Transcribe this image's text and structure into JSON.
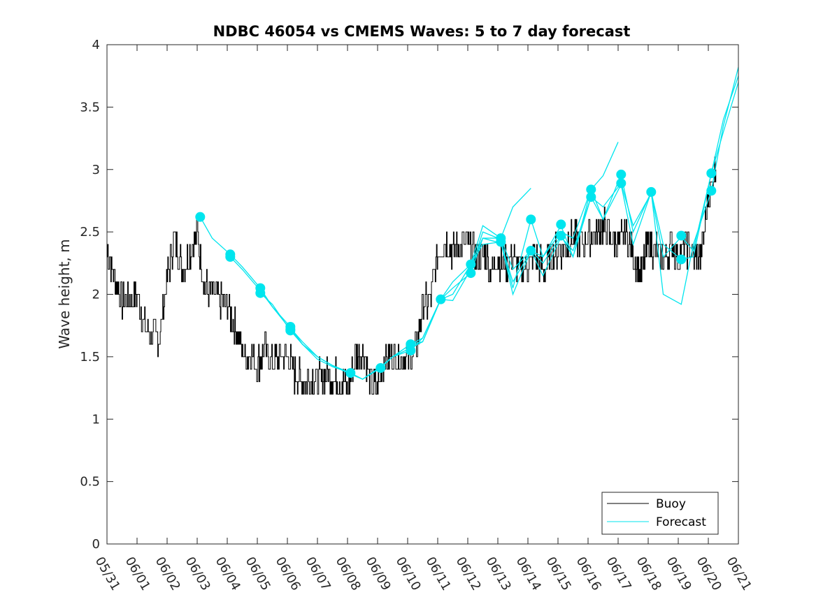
{
  "chart_data": {
    "type": "line",
    "title": "NDBC 46054 vs CMEMS Waves: 5 to 7 day forecast",
    "xlabel": "",
    "ylabel": "Wave height, m",
    "x_unit": "days",
    "xlim": [
      0,
      21
    ],
    "ylim": [
      0,
      4
    ],
    "x_tick_labels": [
      "05/31",
      "06/01",
      "06/02",
      "06/03",
      "06/04",
      "06/05",
      "06/06",
      "06/07",
      "06/08",
      "06/09",
      "06/10",
      "06/11",
      "06/12",
      "06/13",
      "06/14",
      "06/15",
      "06/16",
      "06/17",
      "06/18",
      "06/19",
      "06/20",
      "06/21"
    ],
    "y_ticks": [
      0,
      0.5,
      1,
      1.5,
      2,
      2.5,
      3,
      3.5,
      4
    ],
    "y_tick_labels": [
      "0",
      "0.5",
      "1",
      "1.5",
      "2",
      "2.5",
      "3",
      "3.5",
      "4"
    ],
    "legend": {
      "position": "bottom-right",
      "entries": [
        "Buoy",
        "Forecast"
      ]
    },
    "colors": {
      "buoy": "#000000",
      "forecast": "#00e5ee",
      "axis": "#262626"
    },
    "grid": false,
    "series": [
      {
        "name": "Buoy",
        "color": "#000000",
        "x": [
          0,
          0.25,
          0.5,
          0.75,
          1,
          1.25,
          1.5,
          1.75,
          2,
          2.25,
          2.5,
          2.75,
          3,
          3.25,
          3.5,
          3.75,
          4,
          4.25,
          4.5,
          4.75,
          5,
          5.25,
          5.5,
          5.75,
          6,
          6.25,
          6.5,
          6.75,
          7,
          7.25,
          7.5,
          7.75,
          8,
          8.25,
          8.5,
          8.75,
          9,
          9.25,
          9.5,
          9.75,
          10,
          10.25,
          10.5,
          10.75,
          11,
          11.25,
          11.5,
          11.75,
          12,
          12.25,
          12.5,
          12.75,
          13,
          13.25,
          13.5,
          13.75,
          14,
          14.25,
          14.5,
          14.75,
          15,
          15.25,
          15.5,
          15.75,
          16,
          16.25,
          16.5,
          16.75,
          17,
          17.25,
          17.5,
          17.75,
          18,
          18.25,
          18.5,
          18.75,
          19,
          19.25,
          19.5,
          19.75,
          20,
          20.25
        ],
        "y": [
          2.35,
          2.15,
          1.95,
          1.95,
          2.0,
          1.75,
          1.65,
          1.65,
          2.15,
          2.45,
          2.2,
          2.35,
          2.5,
          2.05,
          2.0,
          1.95,
          1.9,
          1.75,
          1.55,
          1.5,
          1.45,
          1.55,
          1.45,
          1.5,
          1.5,
          1.35,
          1.3,
          1.35,
          1.3,
          1.35,
          1.35,
          1.3,
          1.25,
          1.5,
          1.55,
          1.3,
          1.25,
          1.5,
          1.5,
          1.5,
          1.5,
          1.55,
          1.9,
          1.95,
          2.35,
          2.45,
          2.35,
          2.4,
          2.4,
          2.3,
          2.35,
          2.2,
          2.3,
          2.25,
          2.3,
          2.2,
          2.25,
          2.3,
          2.2,
          2.3,
          2.35,
          2.4,
          2.45,
          2.4,
          2.45,
          2.5,
          2.55,
          2.45,
          2.4,
          2.5,
          2.3,
          2.15,
          2.4,
          2.35,
          2.3,
          2.4,
          2.3,
          2.4,
          2.3,
          2.3,
          2.8,
          3.0
        ]
      },
      {
        "name": "Forecast",
        "color": "#00e5ee",
        "runs": [
          {
            "x": [
              3.1,
              3.5,
              4.1,
              4.5,
              5.1,
              5.5,
              6.1,
              6.5,
              7.0,
              7.5,
              8.1,
              8.5,
              9.1,
              9.5,
              10.1,
              10.5,
              11.1
            ],
            "y": [
              2.62,
              2.45,
              2.32,
              2.22,
              2.05,
              1.9,
              1.74,
              1.6,
              1.48,
              1.42,
              1.37,
              1.32,
              1.41,
              1.5,
              1.6,
              1.62,
              1.96
            ]
          },
          {
            "x": [
              4.1,
              4.5,
              5.1,
              5.5,
              6.1,
              6.5,
              7.0,
              7.5,
              8.1,
              8.5,
              9.1,
              9.5,
              10.1,
              10.5,
              11.1,
              11.5,
              12.1,
              12.5,
              13.1,
              13.5,
              14.1
            ],
            "y": [
              2.3,
              2.2,
              2.03,
              1.9,
              1.72,
              1.6,
              1.5,
              1.43,
              1.37,
              1.32,
              1.41,
              1.5,
              1.55,
              1.65,
              1.96,
              2.0,
              2.24,
              2.55,
              2.45,
              2.7,
              2.85
            ]
          },
          {
            "x": [
              5.1,
              5.5,
              6.1,
              6.5,
              7.0,
              7.5,
              8.1,
              8.5,
              9.1,
              9.5,
              10.1,
              10.5,
              11.1,
              11.5,
              12.1,
              12.5,
              13.1,
              13.5,
              14.1,
              14.5,
              15.1,
              15.5,
              16.1,
              16.5,
              17.0
            ],
            "y": [
              2.01,
              1.92,
              1.71,
              1.6,
              1.5,
              1.43,
              1.36,
              1.32,
              1.42,
              1.5,
              1.6,
              1.65,
              1.96,
              2.1,
              2.24,
              2.45,
              2.45,
              2.2,
              2.35,
              2.3,
              2.5,
              2.45,
              2.84,
              2.95,
              3.22
            ]
          },
          {
            "x": [
              6.1,
              6.5,
              7.0,
              7.5,
              8.1,
              8.5,
              9.1,
              9.5,
              10.1,
              10.5,
              11.1,
              11.5,
              12.1,
              12.5,
              13.1,
              13.5,
              14.1,
              14.5,
              15.1,
              15.5,
              16.1,
              16.5,
              17.1,
              17.5,
              18.1,
              18.5,
              19.1,
              19.5,
              20.1,
              20.5,
              21.0
            ],
            "y": [
              1.73,
              1.62,
              1.5,
              1.43,
              1.37,
              1.32,
              1.41,
              1.5,
              1.57,
              1.62,
              1.96,
              2.05,
              2.17,
              2.45,
              2.41,
              2.1,
              2.35,
              2.25,
              2.47,
              2.3,
              2.78,
              2.6,
              2.96,
              2.5,
              2.82,
              2.4,
              2.28,
              2.3,
              2.97,
              3.4,
              3.75
            ]
          },
          {
            "x": [
              11.1,
              11.5,
              12.1,
              12.5,
              13.1,
              13.5,
              14.1,
              14.5,
              15.1,
              15.5,
              16.1,
              16.5,
              17.1,
              17.5,
              18.1,
              18.5,
              19.1,
              19.5,
              20.1,
              20.5,
              21.0
            ],
            "y": [
              1.96,
              1.95,
              2.2,
              2.5,
              2.44,
              2.05,
              2.6,
              2.3,
              2.55,
              2.3,
              2.84,
              2.6,
              2.88,
              2.4,
              2.82,
              2.0,
              1.92,
              2.4,
              2.83,
              3.35,
              3.82
            ]
          },
          {
            "x": [
              12.1,
              12.5,
              13.1,
              13.5,
              14.1,
              14.5,
              15.1,
              15.5,
              16.1,
              16.5,
              17.1,
              17.5,
              18.1,
              18.5,
              19.1,
              19.5,
              20.1,
              20.5,
              21.0
            ],
            "y": [
              2.24,
              2.4,
              2.42,
              2.0,
              2.35,
              2.15,
              2.46,
              2.35,
              2.78,
              2.7,
              2.89,
              2.55,
              2.81,
              2.3,
              2.46,
              2.35,
              2.97,
              3.3,
              3.7
            ]
          }
        ],
        "markers": {
          "x": [
            3.1,
            4.1,
            4.1,
            5.1,
            5.1,
            6.1,
            6.1,
            6.1,
            8.1,
            9.1,
            10.1,
            10.1,
            11.1,
            12.1,
            12.1,
            13.1,
            13.1,
            14.1,
            14.1,
            15.1,
            15.1,
            16.1,
            16.1,
            17.1,
            17.1,
            18.1,
            19.1,
            19.1,
            20.1,
            20.1
          ],
          "y": [
            2.62,
            2.32,
            2.3,
            2.05,
            2.01,
            1.74,
            1.72,
            1.71,
            1.37,
            1.41,
            1.6,
            1.55,
            1.96,
            2.24,
            2.17,
            2.45,
            2.42,
            2.6,
            2.35,
            2.56,
            2.47,
            2.84,
            2.78,
            2.96,
            2.89,
            2.82,
            2.47,
            2.28,
            2.97,
            2.83
          ]
        }
      }
    ]
  }
}
